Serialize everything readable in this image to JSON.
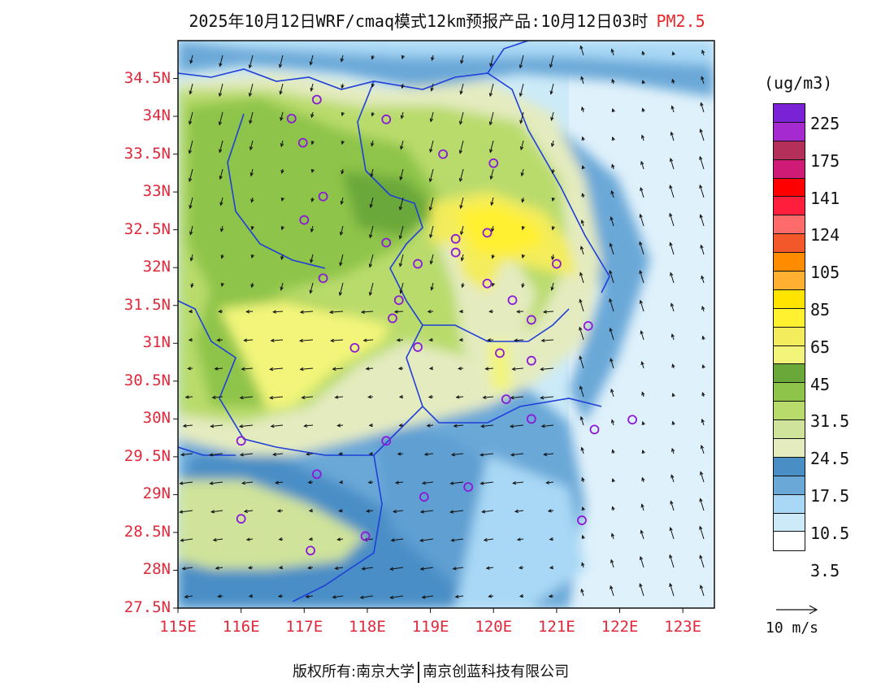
{
  "header": {
    "title": "2025年10月12日WRF/cmaq模式12km预报产品:10月12日03时",
    "species": "PM2.5"
  },
  "colors": {
    "label_red": "#e0283a",
    "boundary_blue": "#1f3fd8",
    "station_purple": "#8b1ad8"
  },
  "chart_data": {
    "type": "heatmap",
    "x_ticks": [
      "115E",
      "116E",
      "117E",
      "118E",
      "119E",
      "120E",
      "121E",
      "122E",
      "123E"
    ],
    "y_ticks": [
      "34.5N",
      "34N",
      "33.5N",
      "33N",
      "32.5N",
      "32N",
      "31.5N",
      "31N",
      "30.5N",
      "30N",
      "29.5N",
      "29N",
      "28.5N",
      "28N",
      "27.5N"
    ],
    "xlim": [
      115,
      123.5
    ],
    "ylim": [
      27.5,
      35
    ],
    "colorbar": {
      "unit": "(ug/m3)",
      "labels": [
        "225",
        "175",
        "141",
        "124",
        "105",
        "85",
        "65",
        "45",
        "31.5",
        "24.5",
        "17.5",
        "10.5",
        "3.5"
      ],
      "colors": [
        "#7a22d6",
        "#a52ad0",
        "#b4305a",
        "#cf1a76",
        "#ff0000",
        "#ff1f3c",
        "#ff6a6a",
        "#f2582a",
        "#ff8c00",
        "#ffb030",
        "#ffe400",
        "#fff030",
        "#f3ec5c",
        "#f2f57a",
        "#6ba83a",
        "#8ec44a",
        "#b9db6c",
        "#cfe39a",
        "#e4ebbf",
        "#4a8ec6",
        "#6aa8d8",
        "#a8d8f5",
        "#cceaf8",
        "#ffffff"
      ]
    },
    "vector_reference": "10 m/s"
  },
  "footer": {
    "copyright": "版权所有:南京大学",
    "company": "南京创蓝科技有限公司"
  }
}
